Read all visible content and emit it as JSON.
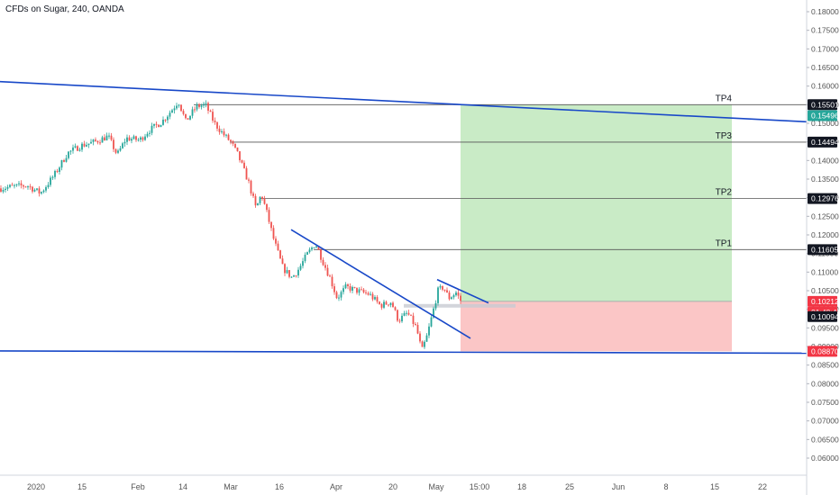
{
  "header": {
    "title": "CFDs on Sugar, 240, OANDA"
  },
  "colors": {
    "up": "#26a69a",
    "down": "#ef5350",
    "trendline": "#1848c8",
    "target_zone": "#c9ebc6",
    "stop_zone": "#fbc6c6",
    "price_tag_dark": "#131722",
    "price_tag_green": "#26a69a",
    "price_tag_red": "#f23645"
  },
  "chart_data": {
    "type": "candlestick",
    "ylim": [
      0.056,
      0.182
    ],
    "y_ticks": [
      "0.18000",
      "0.17500",
      "0.17000",
      "0.16500",
      "0.16000",
      "0.15500",
      "0.15000",
      "0.14500",
      "0.14000",
      "0.13500",
      "0.13000",
      "0.12500",
      "0.12000",
      "0.11500",
      "0.11000",
      "0.10500",
      "0.10000",
      "0.09500",
      "0.09000",
      "0.08500",
      "0.08000",
      "0.07500",
      "0.07000",
      "0.06500",
      "0.06000"
    ],
    "x_ticks": [
      "2020",
      "15",
      "Feb",
      "14",
      "Mar",
      "16",
      "Apr",
      "20",
      "May",
      "15:00",
      "18",
      "25",
      "Jun",
      "8",
      "15",
      "22"
    ],
    "price_path": [
      [
        0,
        0.1325
      ],
      [
        15,
        0.133
      ],
      [
        30,
        0.1333
      ],
      [
        45,
        0.1312
      ],
      [
        60,
        0.136
      ],
      [
        75,
        0.142
      ],
      [
        90,
        0.144
      ],
      [
        105,
        0.145
      ],
      [
        120,
        0.1465
      ],
      [
        130,
        0.1415
      ],
      [
        140,
        0.146
      ],
      [
        155,
        0.1455
      ],
      [
        165,
        0.148
      ],
      [
        180,
        0.1505
      ],
      [
        192,
        0.154
      ],
      [
        198,
        0.156
      ],
      [
        206,
        0.1505
      ],
      [
        218,
        0.1545
      ],
      [
        228,
        0.155
      ],
      [
        238,
        0.15
      ],
      [
        248,
        0.147
      ],
      [
        256,
        0.145
      ],
      [
        264,
        0.1415
      ],
      [
        276,
        0.134
      ],
      [
        284,
        0.127
      ],
      [
        290,
        0.131
      ],
      [
        296,
        0.126
      ],
      [
        304,
        0.1185
      ],
      [
        314,
        0.111
      ],
      [
        324,
        0.1085
      ],
      [
        332,
        0.111
      ],
      [
        340,
        0.1145
      ],
      [
        350,
        0.1178
      ],
      [
        358,
        0.113
      ],
      [
        366,
        0.1085
      ],
      [
        374,
        0.103
      ],
      [
        384,
        0.106
      ],
      [
        396,
        0.105
      ],
      [
        410,
        0.104
      ],
      [
        422,
        0.101
      ],
      [
        434,
        0.102
      ],
      [
        442,
        0.097
      ],
      [
        452,
        0.099
      ],
      [
        462,
        0.095
      ],
      [
        468,
        0.0887
      ],
      [
        474,
        0.093
      ],
      [
        480,
        0.099
      ],
      [
        486,
        0.105
      ],
      [
        492,
        0.106
      ],
      [
        498,
        0.103
      ],
      [
        506,
        0.1045
      ],
      [
        513,
        0.1015
      ]
    ],
    "trendlines": [
      {
        "from": [
          0,
          0.1612
        ],
        "to": [
          895,
          0.1504
        ]
      },
      {
        "from": [
          0,
          0.0888
        ],
        "to": [
          895,
          0.0882
        ]
      },
      {
        "from": [
          323,
          0.1214
        ],
        "to": [
          522,
          0.0922
        ]
      },
      {
        "from": [
          485,
          0.108
        ],
        "to": [
          542,
          0.1017
        ]
      }
    ],
    "levels": [
      {
        "label": "TP4",
        "value": 0.15501,
        "x_start": 215
      },
      {
        "label": "TP3",
        "value": 0.14494,
        "x_start": 255
      },
      {
        "label": "TP2",
        "value": 0.12976,
        "x_start": 288
      },
      {
        "label": "TP1",
        "value": 0.11605,
        "x_start": 348
      }
    ],
    "position": {
      "x_start": 511,
      "x_end": 812,
      "entry": 0.10212,
      "target": 0.15501,
      "stop": 0.0887
    },
    "current_range": {
      "x_start": 448,
      "x_end": 572,
      "value": 0.10094
    },
    "price_tags": [
      {
        "text": "0.15501",
        "value": 0.15501,
        "style": "dark"
      },
      {
        "text": "0.15496",
        "value": 0.15496,
        "style": "green",
        "offset": 1
      },
      {
        "text": "0.14494",
        "value": 0.14494,
        "style": "dark"
      },
      {
        "text": "0.12976",
        "value": 0.12976,
        "style": "dark"
      },
      {
        "text": "0.11605",
        "value": 0.11605,
        "style": "dark"
      },
      {
        "text": "0.10212",
        "value": 0.10212,
        "style": "red"
      },
      {
        "text": "01:48:42",
        "value": 0.10212,
        "style": "red",
        "offset": 1
      },
      {
        "text": "0.10094",
        "value": 0.10094,
        "style": "dark",
        "offset": 1
      },
      {
        "text": "0.08870",
        "value": 0.0887,
        "style": "red"
      }
    ]
  }
}
